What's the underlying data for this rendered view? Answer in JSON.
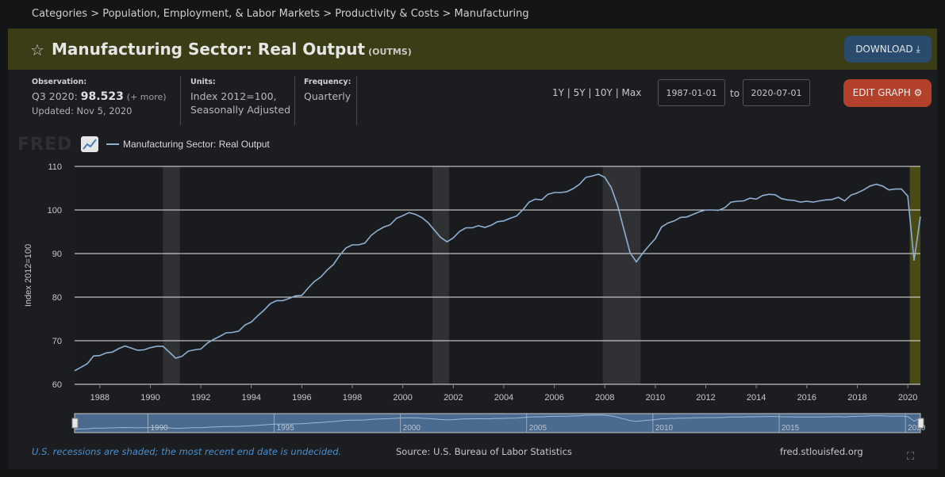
{
  "breadcrumb": "Categories > Population, Employment, & Labor Markets > Productivity & Costs > Manufacturing",
  "title": "Manufacturing Sector: Real Output",
  "series_code": "(OUTMS)",
  "download_label": "DOWNLOAD",
  "observation": {
    "label": "Observation:",
    "period": "Q3 2020:",
    "value": "98.523",
    "more": "(+ more)",
    "updated": "Updated: Nov 5, 2020"
  },
  "units": {
    "label": "Units:",
    "line1": "Index 2012=100,",
    "line2": "Seasonally Adjusted"
  },
  "frequency": {
    "label": "Frequency:",
    "value": "Quarterly"
  },
  "ranges": "1Y | 5Y | 10Y | Max",
  "date_from": "1987-01-01",
  "date_to": "2020-07-01",
  "to_label": "to",
  "edit_label": "EDIT GRAPH",
  "logo_text": "FRED",
  "footer": {
    "recession_note": "U.S. recessions are shaded; the most recent end date is undecided.",
    "source": "Source: U.S. Bureau of Labor Statistics",
    "site": "fred.stlouisfed.org"
  },
  "colors": {
    "line": "#8fb0d3",
    "titlebar": "#3b3d17",
    "download": "#2a4b6e",
    "edit": "#b2402b",
    "recession": "#2f3135",
    "recession_current": "#4a4a14"
  },
  "chart_data": {
    "type": "line",
    "title": "Manufacturing Sector: Real Output",
    "legend": [
      "Manufacturing Sector: Real Output"
    ],
    "xlabel": "",
    "ylabel": "Index 2012=100",
    "xlim": [
      1987.0,
      2020.5
    ],
    "ylim": [
      60,
      110
    ],
    "yticks": [
      60,
      70,
      80,
      90,
      100,
      110
    ],
    "xticks": [
      1988,
      1990,
      1992,
      1994,
      1996,
      1998,
      2000,
      2002,
      2004,
      2006,
      2008,
      2010,
      2012,
      2014,
      2016,
      2018,
      2020
    ],
    "recessions": [
      [
        1990.5,
        1991.17
      ],
      [
        2001.17,
        2001.83
      ],
      [
        2007.92,
        2009.42
      ],
      [
        2020.08,
        2020.5
      ]
    ],
    "navigator_ticks": [
      1990,
      1995,
      2000,
      2005,
      2010,
      2015,
      2020
    ],
    "series": [
      {
        "name": "Manufacturing Sector: Real Output",
        "x": [
          1987.0,
          1987.25,
          1987.5,
          1987.75,
          1988.0,
          1988.25,
          1988.5,
          1988.75,
          1989.0,
          1989.25,
          1989.5,
          1989.75,
          1990.0,
          1990.25,
          1990.5,
          1990.75,
          1991.0,
          1991.25,
          1991.5,
          1991.75,
          1992.0,
          1992.25,
          1992.5,
          1992.75,
          1993.0,
          1993.25,
          1993.5,
          1993.75,
          1994.0,
          1994.25,
          1994.5,
          1994.75,
          1995.0,
          1995.25,
          1995.5,
          1995.75,
          1996.0,
          1996.25,
          1996.5,
          1996.75,
          1997.0,
          1997.25,
          1997.5,
          1997.75,
          1998.0,
          1998.25,
          1998.5,
          1998.75,
          1999.0,
          1999.25,
          1999.5,
          1999.75,
          2000.0,
          2000.25,
          2000.5,
          2000.75,
          2001.0,
          2001.25,
          2001.5,
          2001.75,
          2002.0,
          2002.25,
          2002.5,
          2002.75,
          2003.0,
          2003.25,
          2003.5,
          2003.75,
          2004.0,
          2004.25,
          2004.5,
          2004.75,
          2005.0,
          2005.25,
          2005.5,
          2005.75,
          2006.0,
          2006.25,
          2006.5,
          2006.75,
          2007.0,
          2007.25,
          2007.5,
          2007.75,
          2008.0,
          2008.25,
          2008.5,
          2008.75,
          2009.0,
          2009.25,
          2009.5,
          2009.75,
          2010.0,
          2010.25,
          2010.5,
          2010.75,
          2011.0,
          2011.25,
          2011.5,
          2011.75,
          2012.0,
          2012.25,
          2012.5,
          2012.75,
          2013.0,
          2013.25,
          2013.5,
          2013.75,
          2014.0,
          2014.25,
          2014.5,
          2014.75,
          2015.0,
          2015.25,
          2015.5,
          2015.75,
          2016.0,
          2016.25,
          2016.5,
          2016.75,
          2017.0,
          2017.25,
          2017.5,
          2017.75,
          2018.0,
          2018.25,
          2018.5,
          2018.75,
          2019.0,
          2019.25,
          2019.5,
          2019.75,
          2020.0,
          2020.25,
          2020.5
        ],
        "values": [
          63.1,
          63.9,
          64.7,
          66.5,
          66.6,
          67.2,
          67.4,
          68.2,
          68.8,
          68.3,
          67.8,
          67.9,
          68.4,
          68.7,
          68.7,
          67.4,
          66.0,
          66.4,
          67.6,
          67.9,
          68.1,
          69.4,
          70.3,
          71.0,
          71.8,
          71.9,
          72.2,
          73.6,
          74.3,
          75.7,
          77.0,
          78.5,
          79.2,
          79.2,
          79.7,
          80.3,
          80.4,
          82.1,
          83.6,
          84.6,
          86.2,
          87.5,
          89.6,
          91.3,
          92.0,
          92.0,
          92.4,
          94.2,
          95.3,
          96.1,
          96.6,
          98.1,
          98.7,
          99.4,
          99.0,
          98.3,
          97.1,
          95.4,
          93.7,
          92.7,
          93.6,
          95.1,
          95.9,
          95.9,
          96.4,
          96.0,
          96.5,
          97.3,
          97.5,
          98.1,
          98.6,
          100.0,
          101.8,
          102.5,
          102.3,
          103.6,
          104.0,
          104.0,
          104.2,
          104.9,
          105.9,
          107.5,
          107.8,
          108.2,
          107.5,
          105.2,
          101.2,
          95.7,
          90.2,
          88.1,
          90.1,
          91.8,
          93.4,
          96.1,
          97.0,
          97.5,
          98.3,
          98.4,
          99.0,
          99.6,
          100.0,
          100.0,
          99.9,
          100.5,
          101.8,
          102.0,
          102.1,
          102.7,
          102.5,
          103.3,
          103.6,
          103.5,
          102.6,
          102.3,
          102.2,
          101.8,
          102.0,
          101.8,
          102.1,
          102.3,
          102.4,
          102.9,
          102.1,
          103.4,
          103.9,
          104.6,
          105.5,
          105.9,
          105.5,
          104.6,
          104.8,
          104.8,
          103.2,
          88.4,
          98.5
        ]
      }
    ]
  }
}
